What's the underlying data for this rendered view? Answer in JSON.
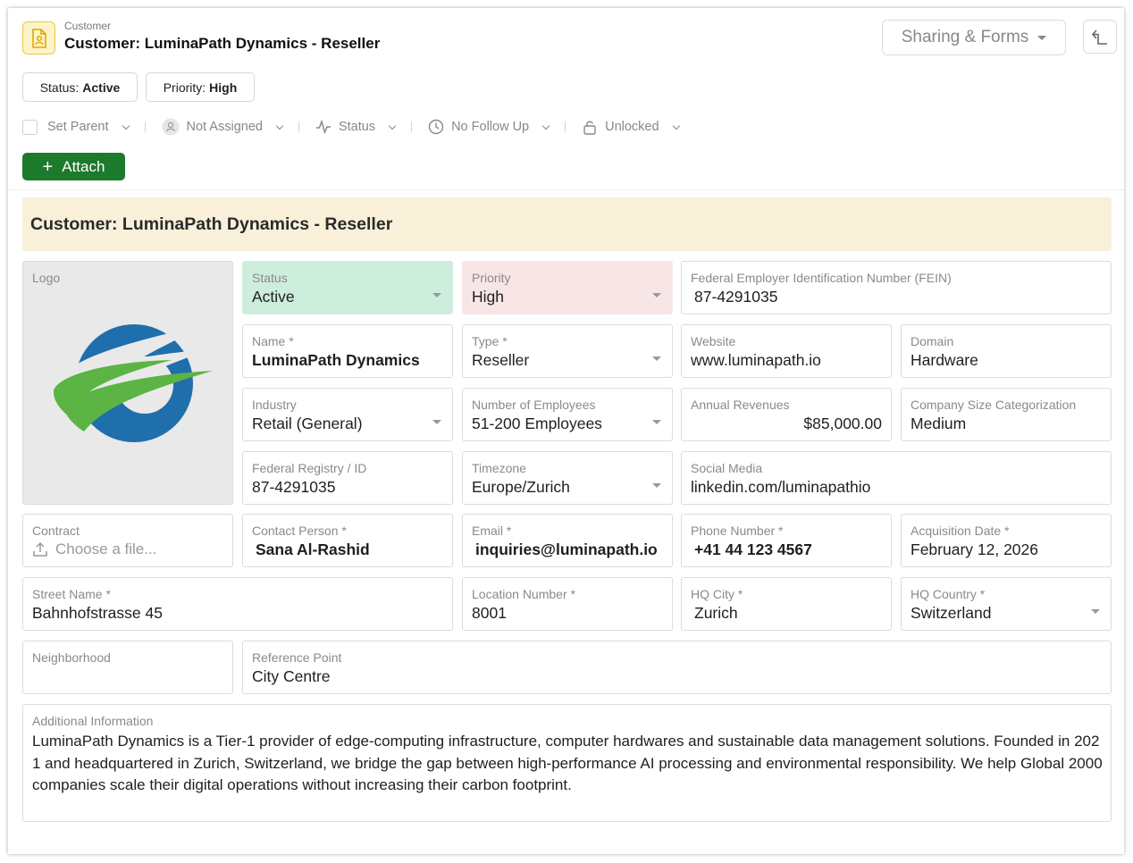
{
  "header": {
    "kicker": "Customer",
    "title": "Customer: LuminaPath Dynamics - Reseller",
    "sharing_label": "Sharing & Forms"
  },
  "chips": {
    "status_label": "Status:",
    "status_value": "Active",
    "priority_label": "Priority:",
    "priority_value": "High"
  },
  "toolbar": {
    "set_parent": "Set Parent",
    "assignee": "Not Assigned",
    "status": "Status",
    "follow_up": "No Follow Up",
    "lock": "Unlocked"
  },
  "attach_label": "Attach",
  "section_title": "Customer: LuminaPath Dynamics - Reseller",
  "fields": {
    "logo": {
      "label": "Logo"
    },
    "status": {
      "label": "Status",
      "value": "Active"
    },
    "priority": {
      "label": "Priority",
      "value": "High"
    },
    "fein": {
      "label": "Federal Employer Identification Number (FEIN)",
      "value": "87-4291035"
    },
    "name": {
      "label": "Name *",
      "value": "LuminaPath Dynamics"
    },
    "type": {
      "label": "Type *",
      "value": "Reseller"
    },
    "website": {
      "label": "Website",
      "value": "www.luminapath.io"
    },
    "domain": {
      "label": "Domain",
      "value": "Hardware"
    },
    "industry": {
      "label": "Industry",
      "value": "Retail (General)"
    },
    "employees": {
      "label": "Number of Employees",
      "value": "51-200 Employees"
    },
    "revenues": {
      "label": "Annual Revenues",
      "value": "$85,000.00"
    },
    "size": {
      "label": "Company Size Categorization",
      "value": "Medium"
    },
    "registry": {
      "label": "Federal Registry / ID",
      "value": "87-4291035"
    },
    "timezone": {
      "label": "Timezone",
      "value": "Europe/Zurich"
    },
    "social": {
      "label": "Social Media",
      "value": "linkedin.com/luminapathio"
    },
    "contract": {
      "label": "Contract",
      "placeholder": "Choose a file..."
    },
    "contact": {
      "label": "Contact Person *",
      "value": "Sana Al-Rashid"
    },
    "email": {
      "label": "Email *",
      "value": "inquiries@luminapath.io"
    },
    "phone": {
      "label": "Phone Number *",
      "value": "+41 44 123 4567"
    },
    "acquisition": {
      "label": "Acquisition Date *",
      "value": "February 12, 2026"
    },
    "street": {
      "label": "Street Name *",
      "value": "Bahnhofstrasse 45"
    },
    "location": {
      "label": "Location Number *",
      "value": "8001"
    },
    "city": {
      "label": "HQ City *",
      "value": "Zurich"
    },
    "country": {
      "label": "HQ Country *",
      "value": "Switzerland"
    },
    "neighborhood": {
      "label": "Neighborhood",
      "value": ""
    },
    "reference": {
      "label": "Reference Point",
      "value": "City Centre"
    },
    "additional": {
      "label": "Additional Information",
      "value": "LuminaPath Dynamics is a Tier-1 provider of edge-computing infrastructure, computer hardwares and sustainable data management solutions. Founded in 2021 and headquartered in Zurich, Switzerland, we bridge the gap between high-performance AI processing and environmental responsibility. We help Global 2000 companies scale their digital operations without increasing their carbon footprint."
    }
  },
  "colors": {
    "accent_green": "#1c7a2c",
    "status_bg": "#cdeedd",
    "priority_bg": "#f8e6e6",
    "banner_bg": "#f8f0d9",
    "logo_blue": "#1f6fad",
    "logo_green": "#5bb443"
  }
}
